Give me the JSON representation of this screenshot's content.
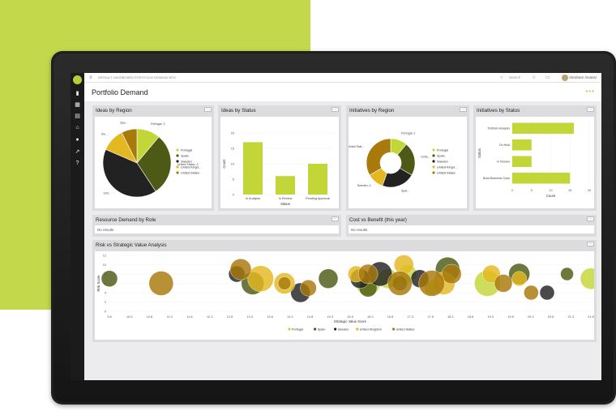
{
  "colors": {
    "green": "#c3d94b",
    "accent": "#b8cc35",
    "portugal": "#c3d637",
    "spain": "#4d5a15",
    "sweden": "#222222",
    "united_kingdom": "#e3b820",
    "united_states": "#a8790b"
  },
  "header": {
    "breadcrumb_home": "DEFAULT DASHBOARD",
    "breadcrumb_current": "PORTFOLIO DEMAND BOX",
    "search_placeholder": "Search",
    "user_name": "Abraham Alvarez"
  },
  "page": {
    "title": "Portfolio Demand",
    "more": "•••"
  },
  "rail": {
    "icons": [
      "home-logo",
      "chart-icon",
      "grid-icon",
      "calendar-icon",
      "bank-icon",
      "people-icon",
      "export-icon",
      "help-icon"
    ]
  },
  "panels": {
    "ideas_region": {
      "title": "Ideas by Region"
    },
    "ideas_status": {
      "title": "Ideas by Status"
    },
    "init_region": {
      "title": "Initiatives by Region"
    },
    "init_status": {
      "title": "Initiatives by Status"
    },
    "resource": {
      "title": "Resource Demand by Role",
      "empty": "No results"
    },
    "cost": {
      "title": "Cost vs Benefit (this year)",
      "empty": "No results"
    },
    "risk": {
      "title": "Risk vs Strategic Value Analysis"
    }
  },
  "legend_labels": [
    "Portugal",
    "Spain",
    "Sweden",
    "United Kingd...",
    "United States"
  ],
  "chart_data": [
    {
      "id": "ideas_region",
      "type": "pie",
      "title": "Ideas by Region",
      "slices": [
        {
          "label": "Portugal",
          "value": 3
        },
        {
          "label": "Spain",
          "value": 8
        },
        {
          "label": "Sweden",
          "value": 11
        },
        {
          "label": "United Kingd...",
          "value": 3
        },
        {
          "label": "United States",
          "value": 2
        }
      ],
      "slice_labels": [
        "Portugal, 3",
        "United States, 2",
        "Unit...",
        "Sw...",
        "Spa..."
      ]
    },
    {
      "id": "ideas_status",
      "type": "bar",
      "title": "Ideas by Status",
      "xlabel": "Status",
      "ylabel": "Count",
      "ylim": [
        0,
        20
      ],
      "yticks": [
        0,
        5,
        10,
        15,
        20
      ],
      "categories": [
        "In Analysis",
        "In Review",
        "Pending Approval"
      ],
      "values": [
        17,
        6,
        10
      ]
    },
    {
      "id": "init_region",
      "type": "pie",
      "title": "Initiatives by Region",
      "donut": true,
      "slices": [
        {
          "label": "Portugal",
          "value": 2
        },
        {
          "label": "Spain",
          "value": 4
        },
        {
          "label": "Sweden",
          "value": 4
        },
        {
          "label": "United Kingd...",
          "value": 2
        },
        {
          "label": "United States",
          "value": 6
        }
      ],
      "slice_labels": [
        "Portugal, 2",
        "Unite...",
        "Spai...",
        "Sweden, 4",
        "United Stat..."
      ]
    },
    {
      "id": "init_status",
      "type": "bar",
      "orientation": "horizontal",
      "title": "Initiatives by Status",
      "xlabel": "Count",
      "ylabel": "Status",
      "xlim": [
        0,
        20
      ],
      "xticks": [
        0,
        5,
        10,
        15,
        20
      ],
      "categories": [
        "Portfolio Analysis",
        "On Hold",
        "In Review",
        "Build Business Case"
      ],
      "values": [
        16,
        5,
        5,
        15
      ]
    },
    {
      "id": "risk",
      "type": "scatter",
      "title": "Risk vs Strategic Value Analysis",
      "xlabel": "Strategic Value Score",
      "ylabel": "Risk Score",
      "xticks": [
        "9.8",
        "10.5",
        "10.8",
        "11.3",
        "11.8",
        "12.3",
        "12.8",
        "13.3",
        "13.8",
        "14.3",
        "14.8",
        "15.3",
        "15.8",
        "16.3",
        "16.8",
        "17.3",
        "17.8",
        "18.3",
        "18.8",
        "19.3",
        "19.8",
        "20.3",
        "20.8",
        "21.3",
        "21.8"
      ],
      "ylim": [
        0,
        12
      ],
      "yticks": [
        0,
        2,
        4,
        6,
        8,
        10,
        12
      ],
      "series": [
        {
          "name": "Portugal",
          "points": [
            [
              16.3,
              6
            ],
            [
              16.8,
              7
            ],
            [
              17.3,
              8
            ],
            [
              17.9,
              5
            ],
            [
              19.3,
              6
            ],
            [
              21.9,
              7
            ]
          ]
        },
        {
          "name": "Spain",
          "points": [
            [
              9.8,
              7
            ],
            [
              13.4,
              6
            ],
            [
              15.3,
              7
            ],
            [
              16.3,
              5
            ],
            [
              17.1,
              6
            ],
            [
              18.3,
              9
            ],
            [
              20.1,
              8
            ],
            [
              21.3,
              8
            ]
          ]
        },
        {
          "name": "Sweden",
          "points": [
            [
              13.0,
              8
            ],
            [
              14.6,
              4
            ],
            [
              16.6,
              8
            ],
            [
              16.1,
              7
            ],
            [
              17.6,
              7
            ],
            [
              20.8,
              4
            ]
          ]
        },
        {
          "name": "United Kingdom",
          "points": [
            [
              13.6,
              7
            ],
            [
              14.2,
              6
            ],
            [
              16.0,
              8
            ],
            [
              18.2,
              6
            ],
            [
              17.2,
              10
            ],
            [
              19.4,
              8
            ],
            [
              20.1,
              7
            ]
          ]
        },
        {
          "name": "United States",
          "points": [
            [
              11.1,
              6
            ],
            [
              13.1,
              9
            ],
            [
              14.2,
              6
            ],
            [
              14.8,
              5
            ],
            [
              16.3,
              8
            ],
            [
              17.1,
              6
            ],
            [
              18.4,
              8
            ],
            [
              19.7,
              6
            ],
            [
              20.4,
              4
            ],
            [
              17.9,
              6
            ]
          ]
        }
      ]
    }
  ]
}
